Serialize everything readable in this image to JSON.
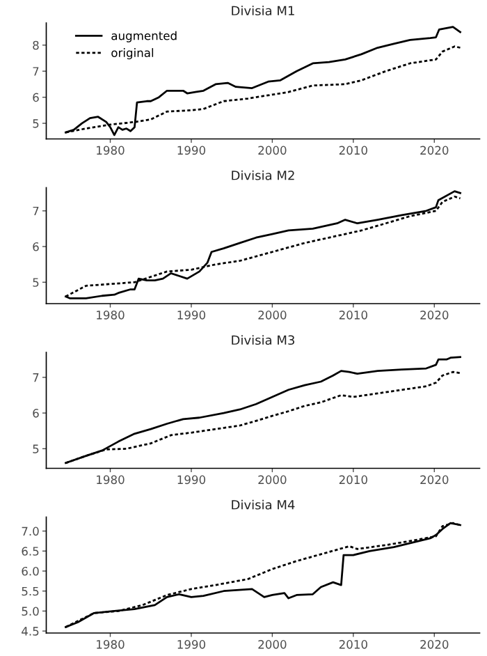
{
  "chart_data": [
    {
      "type": "line",
      "title": "Divisia M1",
      "xlim": [
        1972.1,
        2025.6
      ],
      "xticks": [
        1980,
        1990,
        2000,
        2010,
        2020
      ],
      "ylim": [
        4.4,
        8.85
      ],
      "yticks": [
        5,
        6,
        7,
        8
      ],
      "grid": false,
      "legend": "top left",
      "series": [
        {
          "name": "augmented",
          "color": "#000000",
          "line_style": "solid",
          "x": [
            1974.5,
            1975.5,
            1976.5,
            1977.5,
            1978.5,
            1979.5,
            1980.0,
            1980.5,
            1981,
            1981.5,
            1982,
            1982.5,
            1983,
            1983.3,
            1984.5,
            1985,
            1986,
            1987,
            1988,
            1989,
            1989.5,
            1990.5,
            1991.5,
            1993,
            1994.5,
            1995.5,
            1997.5,
            1999.5,
            2001,
            2003,
            2005,
            2007,
            2009,
            2011,
            2013,
            2015,
            2017,
            2019.5,
            2020.2,
            2020.6,
            2022.3,
            2023.2
          ],
          "values": [
            4.65,
            4.75,
            5.0,
            5.2,
            5.25,
            5.05,
            4.85,
            4.55,
            4.85,
            4.75,
            4.8,
            4.7,
            4.85,
            5.8,
            5.85,
            5.85,
            6.0,
            6.25,
            6.25,
            6.25,
            6.15,
            6.2,
            6.25,
            6.5,
            6.55,
            6.4,
            6.35,
            6.6,
            6.65,
            7.0,
            7.3,
            7.35,
            7.45,
            7.65,
            7.9,
            8.05,
            8.2,
            8.27,
            8.3,
            8.6,
            8.7,
            8.5
          ]
        },
        {
          "name": "original",
          "color": "#000000",
          "line_style": "dotted",
          "x": [
            1974.5,
            1977,
            1980,
            1983,
            1985,
            1987,
            1990,
            1991.5,
            1994,
            1997,
            2000,
            2002,
            2005,
            2009,
            2011,
            2014,
            2017,
            2020.2,
            2021,
            2022.5,
            2023.2
          ],
          "values": [
            4.65,
            4.8,
            4.95,
            5.05,
            5.15,
            5.45,
            5.5,
            5.55,
            5.85,
            5.95,
            6.1,
            6.2,
            6.45,
            6.5,
            6.65,
            7.0,
            7.3,
            7.45,
            7.75,
            7.95,
            7.9
          ]
        }
      ]
    },
    {
      "type": "line",
      "title": "Divisia M2",
      "xlim": [
        1972.1,
        2025.6
      ],
      "xticks": [
        1980,
        1990,
        2000,
        2010,
        2020
      ],
      "ylim": [
        4.4,
        7.65
      ],
      "yticks": [
        5,
        6,
        7
      ],
      "grid": false,
      "series": [
        {
          "color": "#000000",
          "line_style": "solid",
          "x": [
            1974.5,
            1975,
            1977,
            1979,
            1980.5,
            1981,
            1982.5,
            1983,
            1983.5,
            1984.5,
            1985.5,
            1986.5,
            1987.5,
            1989.5,
            1991,
            1992,
            1992.5,
            1994,
            1996,
            1998,
            2000,
            2002,
            2005,
            2008,
            2009,
            2010.5,
            2013,
            2016,
            2019,
            2020.2,
            2020.5,
            2022.5,
            2023.2
          ],
          "values": [
            4.6,
            4.55,
            4.55,
            4.62,
            4.65,
            4.7,
            4.8,
            4.8,
            5.1,
            5.05,
            5.05,
            5.1,
            5.25,
            5.1,
            5.3,
            5.55,
            5.85,
            5.95,
            6.1,
            6.25,
            6.35,
            6.45,
            6.5,
            6.65,
            6.75,
            6.65,
            6.75,
            6.88,
            7.0,
            7.1,
            7.3,
            7.55,
            7.5
          ]
        },
        {
          "color": "#000000",
          "line_style": "dotted",
          "x": [
            1974.5,
            1977,
            1980,
            1983,
            1987,
            1990,
            1993,
            1996,
            2000,
            2004,
            2008,
            2011,
            2014,
            2017,
            2020.2,
            2021,
            2022.5,
            2023.2
          ],
          "values": [
            4.6,
            4.9,
            4.95,
            5.0,
            5.3,
            5.35,
            5.5,
            5.6,
            5.85,
            6.1,
            6.3,
            6.45,
            6.65,
            6.85,
            7.0,
            7.25,
            7.4,
            7.35
          ]
        }
      ]
    },
    {
      "type": "line",
      "title": "Divisia M3",
      "xlim": [
        1972.1,
        2025.6
      ],
      "xticks": [
        1980,
        1990,
        2000,
        2010,
        2020
      ],
      "ylim": [
        4.45,
        7.7
      ],
      "yticks": [
        5,
        6,
        7
      ],
      "grid": false,
      "series": [
        {
          "color": "#000000",
          "line_style": "solid",
          "x": [
            1974.5,
            1977,
            1979,
            1981,
            1983,
            1985,
            1987,
            1989,
            1991,
            1994,
            1996,
            1998,
            2000,
            2002,
            2004,
            2006,
            2007.5,
            2008.5,
            2009.5,
            2010.5,
            2013,
            2016,
            2019,
            2020.2,
            2020.5,
            2021.5,
            2022,
            2023.2
          ],
          "values": [
            4.6,
            4.8,
            4.95,
            5.2,
            5.42,
            5.55,
            5.7,
            5.83,
            5.87,
            6.0,
            6.1,
            6.25,
            6.45,
            6.65,
            6.78,
            6.88,
            7.05,
            7.18,
            7.15,
            7.1,
            7.18,
            7.22,
            7.25,
            7.35,
            7.5,
            7.5,
            7.55,
            7.57
          ]
        },
        {
          "color": "#000000",
          "line_style": "dotted",
          "x": [
            1974.5,
            1977,
            1979.5,
            1982,
            1985,
            1987.5,
            1990,
            1993,
            1996,
            1998,
            2000,
            2002,
            2004,
            2006,
            2008.5,
            2010,
            2013,
            2016,
            2019,
            2020.2,
            2021,
            2022.3,
            2023.2
          ],
          "values": [
            4.6,
            4.8,
            4.98,
            5.0,
            5.15,
            5.38,
            5.45,
            5.55,
            5.65,
            5.78,
            5.92,
            6.05,
            6.2,
            6.3,
            6.5,
            6.45,
            6.55,
            6.65,
            6.75,
            6.85,
            7.05,
            7.15,
            7.12
          ]
        }
      ]
    },
    {
      "type": "line",
      "title": "Divisia M4",
      "xlim": [
        1972.1,
        2025.6
      ],
      "xticks": [
        1980,
        1990,
        2000,
        2010,
        2020
      ],
      "ylim": [
        4.45,
        7.35
      ],
      "yticks": [
        {
          "value": 4.5,
          "label": "4.5"
        },
        {
          "value": 5.0,
          "label": "5.0"
        },
        {
          "value": 5.5,
          "label": "5.5"
        },
        {
          "value": 6.0,
          "label": "6.0"
        },
        {
          "value": 6.5,
          "label": "6.5"
        },
        {
          "value": 7.0,
          "label": "7.0"
        }
      ],
      "grid": false,
      "series": [
        {
          "color": "#000000",
          "line_style": "solid",
          "x": [
            1974.5,
            1976,
            1978,
            1980.5,
            1983,
            1985.5,
            1987,
            1988.5,
            1990,
            1991.5,
            1994,
            1997.5,
            1999,
            2000,
            2001.5,
            2002,
            2003,
            2005,
            2006,
            2007.5,
            2008.5,
            2008.8,
            2010,
            2012,
            2015,
            2019.5,
            2020.2,
            2021,
            2022,
            2023.2
          ],
          "values": [
            4.6,
            4.72,
            4.95,
            5.0,
            5.05,
            5.15,
            5.35,
            5.42,
            5.35,
            5.38,
            5.5,
            5.55,
            5.35,
            5.4,
            5.45,
            5.32,
            5.4,
            5.42,
            5.6,
            5.72,
            5.65,
            6.4,
            6.4,
            6.5,
            6.6,
            6.82,
            6.9,
            7.05,
            7.2,
            7.15
          ]
        },
        {
          "color": "#000000",
          "line_style": "dotted",
          "x": [
            1974.5,
            1978,
            1981,
            1984,
            1987,
            1990,
            1993,
            1997,
            2000,
            2003,
            2006,
            2009.5,
            2010.5,
            2014,
            2017,
            2020.2,
            2021,
            2022.3,
            2023.2
          ],
          "values": [
            4.6,
            4.95,
            5.0,
            5.15,
            5.4,
            5.55,
            5.65,
            5.8,
            6.05,
            6.25,
            6.42,
            6.62,
            6.55,
            6.65,
            6.75,
            6.87,
            7.12,
            7.2,
            7.15
          ]
        }
      ]
    }
  ]
}
